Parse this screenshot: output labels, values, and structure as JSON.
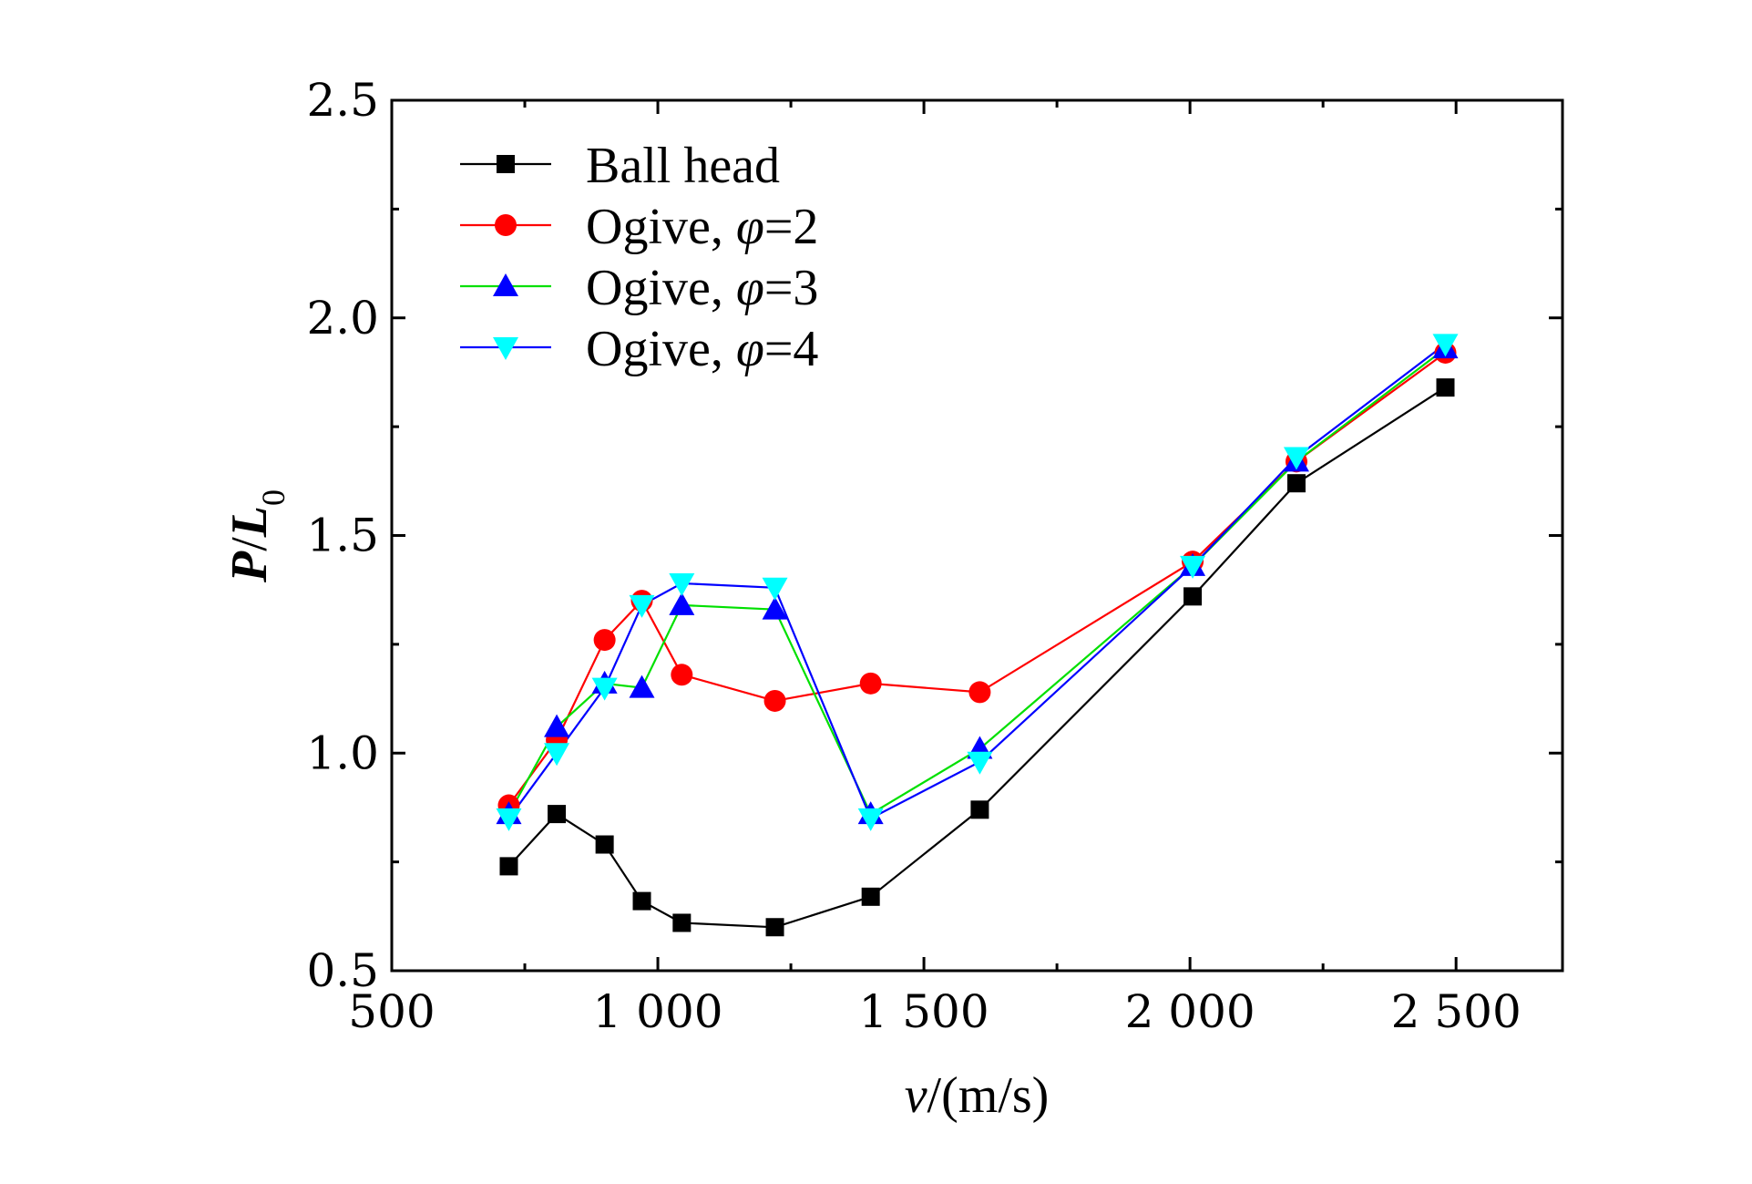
{
  "chart_data": {
    "type": "line",
    "title": "",
    "xlabel": {
      "var": "v",
      "unit": "/(m/s)"
    },
    "ylabel": {
      "var": "P",
      "sep": "/",
      "var2": "L",
      "sub": "0"
    },
    "xlim": [
      500,
      2700
    ],
    "ylim": [
      0.5,
      2.5
    ],
    "x_ticks": [
      500,
      1000,
      1500,
      2000,
      2500
    ],
    "x_tick_labels": [
      "500",
      "1 000",
      "1 500",
      "2 000",
      "2 500"
    ],
    "y_ticks": [
      0.5,
      1.0,
      1.5,
      2.0,
      2.5
    ],
    "y_tick_labels": [
      "0.5",
      "1.0",
      "1.5",
      "2.0",
      "2.5"
    ],
    "grid": false,
    "legend_position": "top-left",
    "series": [
      {
        "name": "Ball head",
        "marker": "square",
        "color": "#000000",
        "marker_color": "#000000",
        "x": [
          720,
          810,
          900,
          970,
          1045,
          1220,
          1400,
          1605,
          2005,
          2200,
          2480
        ],
        "y": [
          0.74,
          0.86,
          0.79,
          0.66,
          0.61,
          0.6,
          0.67,
          0.87,
          1.36,
          1.62,
          1.84
        ]
      },
      {
        "name": "Ogive, φ=2",
        "marker": "circle",
        "color": "#ff0000",
        "marker_color": "#ff0000",
        "x": [
          720,
          810,
          900,
          970,
          1045,
          1220,
          1400,
          1605,
          2005,
          2200,
          2480
        ],
        "y": [
          0.88,
          1.03,
          1.26,
          1.35,
          1.18,
          1.12,
          1.16,
          1.14,
          1.44,
          1.67,
          1.92
        ]
      },
      {
        "name": "Ogive, φ=3",
        "marker": "triangle-up",
        "color": "#00e000",
        "marker_color": "#0000ff",
        "x": [
          720,
          810,
          900,
          970,
          1045,
          1220,
          1400,
          1605,
          2005,
          2200,
          2480
        ],
        "y": [
          0.86,
          1.06,
          1.16,
          1.15,
          1.34,
          1.33,
          0.86,
          1.01,
          1.43,
          1.67,
          1.93
        ]
      },
      {
        "name": "Ogive, φ=4",
        "marker": "triangle-down",
        "color": "#0000ff",
        "marker_color": "#00ffff",
        "x": [
          720,
          810,
          900,
          970,
          1045,
          1220,
          1400,
          1605,
          2005,
          2200,
          2480
        ],
        "y": [
          0.85,
          1.0,
          1.15,
          1.34,
          1.39,
          1.38,
          0.85,
          0.98,
          1.43,
          1.68,
          1.94
        ]
      }
    ]
  }
}
